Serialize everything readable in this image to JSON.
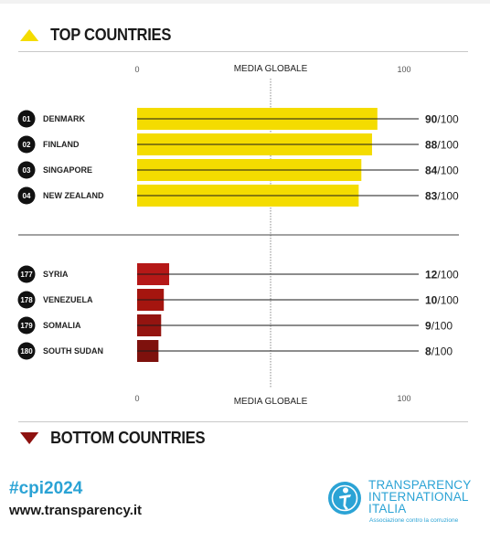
{
  "header_top": {
    "title": "TOP COUNTRIES"
  },
  "header_bottom": {
    "title": "BOTTOM COUNTRIES"
  },
  "chart_data": {
    "type": "bar",
    "orientation": "horizontal",
    "xlim": [
      0,
      100
    ],
    "x_tick_labels": [
      "0",
      "100"
    ],
    "reference_line": {
      "label": "MEDIA GLOBALE",
      "value": 50
    },
    "groups": [
      {
        "name": "top",
        "color": "#f4dc00",
        "rows": [
          {
            "rank": "01",
            "country": "DENMARK",
            "value": 90,
            "value_label": "90",
            "suffix": "/100"
          },
          {
            "rank": "02",
            "country": "FINLAND",
            "value": 88,
            "value_label": "88",
            "suffix": "/100"
          },
          {
            "rank": "03",
            "country": "SINGAPORE",
            "value": 84,
            "value_label": "84",
            "suffix": "/100"
          },
          {
            "rank": "04",
            "country": "NEW ZEALAND",
            "value": 83,
            "value_label": "83",
            "suffix": "/100"
          }
        ]
      },
      {
        "name": "bottom",
        "colors": [
          "#b51817",
          "#a5150f",
          "#941410",
          "#7e110d"
        ],
        "rows": [
          {
            "rank": "177",
            "country": "SYRIA",
            "value": 12,
            "value_label": "12",
            "suffix": "/100"
          },
          {
            "rank": "178",
            "country": "VENEZUELA",
            "value": 10,
            "value_label": "10",
            "suffix": "/100"
          },
          {
            "rank": "179",
            "country": "SOMALIA",
            "value": 9,
            "value_label": "9",
            "suffix": "/100"
          },
          {
            "rank": "180",
            "country": "SOUTH SUDAN",
            "value": 8,
            "value_label": "8",
            "suffix": "/100"
          }
        ]
      }
    ]
  },
  "footer": {
    "hashtag": "#cpi2024",
    "website": "www.transparency.it",
    "logo": {
      "line1": "TRANSPARENCY",
      "line2": "INTERNATIONAL",
      "line3": "ITALIA",
      "subtitle": "Associazione contro la corruzione",
      "color": "#2ba3d5",
      "icon": "transparency-person-circle-icon"
    }
  }
}
